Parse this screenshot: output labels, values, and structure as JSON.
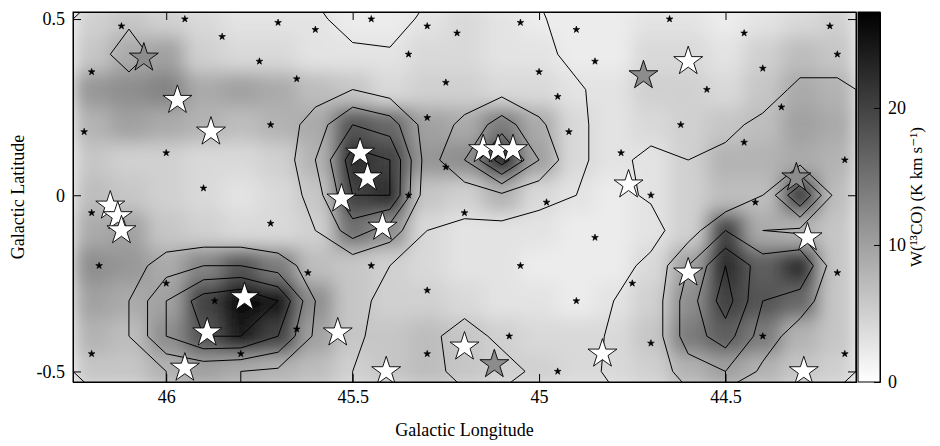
{
  "chart_data": {
    "type": "heatmap",
    "xlabel": "Galactic Longitude",
    "ylabel": "Galactic Latitude",
    "xlim": [
      46.25,
      44.15
    ],
    "ylim": [
      -0.53,
      0.52
    ],
    "xticks": [
      46,
      45.5,
      45,
      44.5
    ],
    "yticks": [
      -0.5,
      0,
      0.5
    ],
    "x": [
      46.2,
      46.1,
      46.0,
      45.9,
      45.8,
      45.7,
      45.6,
      45.5,
      45.4,
      45.3,
      45.2,
      45.1,
      45.0,
      44.9,
      44.8,
      44.7,
      44.6,
      44.5,
      44.4,
      44.3,
      44.2
    ],
    "y": [
      0.5,
      0.4,
      0.3,
      0.2,
      0.1,
      0.0,
      -0.1,
      -0.2,
      -0.3,
      -0.4,
      -0.5
    ],
    "cells": [
      [
        5,
        6,
        5,
        4,
        3,
        3,
        3,
        2,
        2,
        3,
        4,
        3,
        2,
        2,
        2,
        3,
        3,
        2,
        3,
        4,
        5
      ],
      [
        6,
        9,
        10,
        5,
        4,
        4,
        3,
        3,
        3,
        4,
        4,
        3,
        3,
        2,
        2,
        4,
        4,
        3,
        5,
        7,
        6
      ],
      [
        11,
        12,
        13,
        9,
        10,
        9,
        7,
        6,
        4,
        5,
        5,
        4,
        4,
        3,
        3,
        5,
        5,
        4,
        6,
        9,
        8
      ],
      [
        8,
        10,
        9,
        8,
        7,
        8,
        9,
        18,
        16,
        10,
        9,
        14,
        9,
        4,
        3,
        4,
        5,
        6,
        7,
        10,
        9
      ],
      [
        6,
        5,
        5,
        4,
        4,
        5,
        8,
        22,
        20,
        11,
        12,
        22,
        10,
        4,
        3,
        3,
        5,
        8,
        8,
        9,
        8
      ],
      [
        7,
        6,
        5,
        4,
        3,
        4,
        6,
        20,
        22,
        6,
        5,
        8,
        4,
        3,
        2,
        3,
        5,
        7,
        7,
        20,
        7
      ],
      [
        9,
        10,
        6,
        5,
        4,
        4,
        5,
        15,
        12,
        4,
        3,
        3,
        3,
        2,
        2,
        3,
        5,
        20,
        9,
        8,
        6
      ],
      [
        12,
        11,
        9,
        13,
        18,
        14,
        7,
        6,
        5,
        4,
        3,
        3,
        2,
        2,
        2,
        4,
        10,
        22,
        17,
        22,
        6
      ],
      [
        10,
        9,
        10,
        20,
        26,
        25,
        12,
        6,
        5,
        5,
        4,
        3,
        3,
        2,
        3,
        5,
        12,
        20,
        18,
        16,
        6
      ],
      [
        8,
        7,
        12,
        18,
        24,
        20,
        10,
        6,
        6,
        7,
        6,
        5,
        4,
        4,
        4,
        6,
        14,
        17,
        14,
        8,
        6
      ],
      [
        6,
        6,
        8,
        10,
        9,
        8,
        7,
        5,
        6,
        7,
        6,
        5,
        5,
        4,
        4,
        5,
        8,
        10,
        8,
        6,
        5
      ]
    ],
    "colorbar": {
      "label": "W(¹³CO) (K km s⁻¹)",
      "range": [
        0,
        27
      ],
      "ticks": [
        0,
        10,
        20
      ],
      "colors": [
        "#ffffff",
        "#000000"
      ]
    },
    "contours": {
      "levels": [
        1,
        2,
        3,
        4,
        5
      ],
      "values": [
        [
          1.5,
          1.8,
          1.5,
          1.2,
          1.2,
          1.2,
          1.1,
          0.8,
          0.6,
          1.2,
          1.3,
          1.2,
          1.1,
          0.6,
          0.5,
          0.5,
          0.5,
          0.5,
          0.5,
          0.6,
          0.6
        ],
        [
          1.5,
          2.5,
          1.5,
          1.3,
          1.4,
          1.3,
          1.2,
          1.1,
          1.1,
          1.2,
          1.3,
          1.3,
          1.2,
          0.8,
          0.5,
          0.5,
          0.5,
          0.5,
          0.6,
          0.8,
          0.8
        ],
        [
          1.4,
          1.5,
          1.4,
          1.3,
          1.3,
          1.2,
          1.5,
          2,
          1.5,
          1.3,
          1.5,
          1.6,
          1.3,
          1.1,
          0.7,
          0.6,
          0.6,
          0.7,
          0.8,
          1.1,
          1.1
        ],
        [
          1.3,
          1.2,
          1.2,
          1.1,
          1.2,
          1.3,
          2.5,
          4,
          3.5,
          1.5,
          2.2,
          3.5,
          2.2,
          1.1,
          0.8,
          0.7,
          0.8,
          0.9,
          1.1,
          1.3,
          1.3
        ],
        [
          1.2,
          1.4,
          1.2,
          1.1,
          1.1,
          1.2,
          3,
          5.5,
          5,
          1.5,
          3,
          5.5,
          3,
          1.1,
          0.8,
          1.2,
          1.0,
          1.1,
          1.2,
          1.5,
          1.3
        ],
        [
          1.3,
          1.2,
          1.2,
          1.1,
          1.0,
          1.1,
          2.5,
          5,
          5,
          1.3,
          1.4,
          1.8,
          1.3,
          1.0,
          0.8,
          1.1,
          1.0,
          1.1,
          2,
          5,
          1.5
        ],
        [
          1.2,
          1.3,
          1.2,
          1.1,
          1.1,
          1.1,
          2,
          3.5,
          2.5,
          1.0,
          0.8,
          0.7,
          0.6,
          0.6,
          0.6,
          0.7,
          1.5,
          3,
          2,
          1.8,
          1.2
        ],
        [
          1.3,
          1.5,
          2.5,
          3,
          3,
          2.5,
          1.5,
          1.3,
          1.0,
          0.7,
          0.5,
          0.5,
          0.5,
          0.5,
          0.7,
          1.2,
          3,
          5,
          3.5,
          4,
          1.2
        ],
        [
          1.4,
          2,
          4,
          5.5,
          6,
          5,
          2,
          1.2,
          0.8,
          0.6,
          0.5,
          0.5,
          0.5,
          0.6,
          1.0,
          1.3,
          3.5,
          5.5,
          3,
          2.5,
          1.2
        ],
        [
          1.3,
          2,
          4,
          5,
          5,
          4,
          1.8,
          1.1,
          0.8,
          0.7,
          1.5,
          0.7,
          0.6,
          0.7,
          1.1,
          1.3,
          3.5,
          4.5,
          2.5,
          1.5,
          1.1
        ],
        [
          1.2,
          1.5,
          2,
          2.2,
          2,
          1.8,
          1.3,
          1.0,
          0.8,
          0.8,
          1.2,
          1.5,
          0.7,
          0.8,
          1.1,
          1.3,
          2.5,
          3,
          1.8,
          1.3,
          1.1
        ]
      ]
    },
    "series": [
      {
        "type": "scatter",
        "marker": "star",
        "color": "#ffffff",
        "x": [
          45.97,
          45.88,
          46.15,
          46.13,
          46.12,
          45.79,
          45.89,
          45.95,
          45.54,
          45.41,
          45.48,
          45.46,
          45.53,
          45.42,
          45.15,
          45.11,
          45.07,
          45.2,
          44.83,
          44.76,
          44.6,
          44.6,
          44.28,
          44.29
        ],
        "values": [
          0.27,
          0.18,
          -0.03,
          -0.06,
          -0.1,
          -0.29,
          -0.39,
          -0.49,
          -0.39,
          -0.5,
          0.12,
          0.05,
          -0.01,
          -0.09,
          0.13,
          0.13,
          0.13,
          -0.43,
          -0.45,
          0.03,
          0.38,
          -0.22,
          -0.12,
          -0.5
        ]
      },
      {
        "type": "scatter",
        "marker": "star",
        "color": "#8c8c8c",
        "x": [
          46.06,
          45.12,
          44.72,
          44.31
        ],
        "values": [
          0.39,
          -0.48,
          0.34,
          0.05
        ]
      },
      {
        "type": "scatter",
        "marker": "dot",
        "color": "#000000",
        "x": [
          46.12,
          45.95,
          45.85,
          45.7,
          45.6,
          45.45,
          45.3,
          45.22,
          45.05,
          44.9,
          44.65,
          44.45,
          44.22,
          46.2,
          45.75,
          45.65,
          45.35,
          45.25,
          45.0,
          44.95,
          44.85,
          44.55,
          44.4,
          44.2,
          46.22,
          46.0,
          45.72,
          45.3,
          45.25,
          44.92,
          44.78,
          44.62,
          44.45,
          44.18,
          44.35,
          46.2,
          45.9,
          45.72,
          45.35,
          45.2,
          44.98,
          44.85,
          44.7,
          44.42,
          46.18,
          46.0,
          45.45,
          45.3,
          45.05,
          44.9,
          44.75,
          44.2,
          46.2,
          45.8,
          45.65,
          45.3,
          45.08,
          44.95,
          44.7,
          44.4,
          44.18,
          45.87,
          45.62
        ],
        "values": [
          0.48,
          0.5,
          0.45,
          0.49,
          0.47,
          0.5,
          0.48,
          0.46,
          0.49,
          0.47,
          0.5,
          0.46,
          0.48,
          0.35,
          0.38,
          0.33,
          0.4,
          0.32,
          0.35,
          0.28,
          0.38,
          0.3,
          0.36,
          0.4,
          0.18,
          0.12,
          0.2,
          0.22,
          0.08,
          0.18,
          0.12,
          0.2,
          0.15,
          0.1,
          0.25,
          -0.05,
          0.02,
          -0.08,
          0.0,
          -0.05,
          -0.02,
          -0.12,
          0.0,
          -0.02,
          -0.2,
          -0.25,
          -0.2,
          -0.27,
          -0.2,
          -0.3,
          -0.25,
          -0.22,
          -0.45,
          -0.45,
          -0.38,
          -0.45,
          -0.4,
          -0.5,
          -0.42,
          -0.4,
          -0.45,
          -0.3,
          -0.22
        ]
      }
    ]
  }
}
